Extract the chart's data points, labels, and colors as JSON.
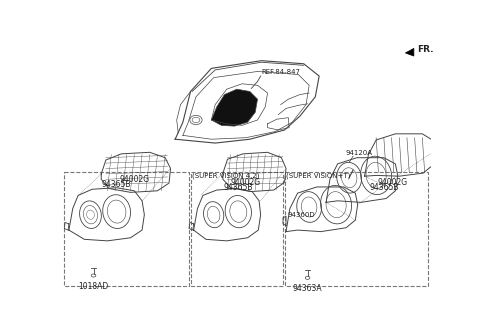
{
  "bg_color": "#ffffff",
  "line_color": "#444444",
  "text_color": "#222222",
  "fr_label": "FR.",
  "ref_label": "REF.84-847",
  "sec1_label1": "94002G",
  "sec1_label2": "94365B",
  "sec1_screw": "1018AD",
  "sec2_title": "(SUPER VISION 4.2)",
  "sec2_label1": "94002G",
  "sec2_label2": "94365B",
  "sec3_title": "(SUPER VISION+T)",
  "sec3_label1": "94002G",
  "sec3_label2": "94365B",
  "sec3_label3": "94120A",
  "sec3_label4": "94360D",
  "sec3_label5": "94363A"
}
